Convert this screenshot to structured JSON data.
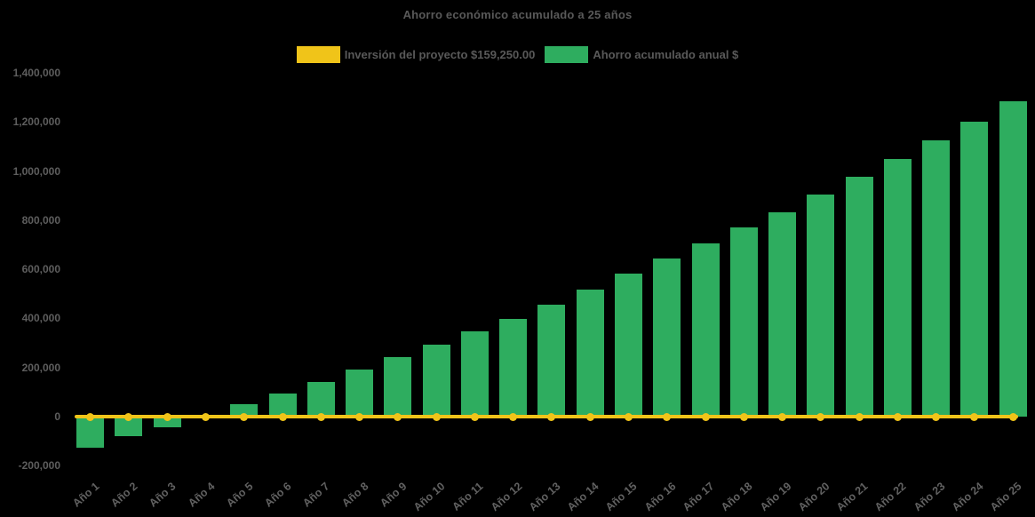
{
  "title": "Ahorro económico acumulado a 25 años",
  "legend": {
    "items": [
      {
        "name": "inversion",
        "label": "Inversión del proyecto $159,250.00",
        "color": "#F0C419"
      },
      {
        "name": "ahorro",
        "label": "Ahorro acumulado anual $",
        "color": "#2EAD5F"
      }
    ]
  },
  "colors": {
    "background": "#000000",
    "bar_green": "#2EAD5F",
    "line_yellow": "#F0C419",
    "title_text": "#595959",
    "axis_text": "#5e5e5e"
  },
  "chart_data": {
    "type": "bar",
    "title": "Ahorro económico acumulado a 25 años",
    "xlabel": "",
    "ylabel": "",
    "ylim": [
      -200000,
      1400000
    ],
    "ytick_step": 200000,
    "ytick_labels": [
      "1,400,000",
      "1,200,000",
      "1,000,000",
      "800,000",
      "600,000",
      "400,000",
      "200,000",
      "0",
      "-200,000"
    ],
    "ytick_values": [
      1400000,
      1200000,
      1000000,
      800000,
      600000,
      400000,
      200000,
      0,
      -200000
    ],
    "grid": false,
    "legend_position": "top",
    "categories": [
      "Año 1",
      "Año 2",
      "Año 3",
      "Año 4",
      "Año 5",
      "Año 6",
      "Año 7",
      "Año 8",
      "Año 9",
      "Año 10",
      "Año 11",
      "Año 12",
      "Año 13",
      "Año 14",
      "Año 15",
      "Año 16",
      "Año 17",
      "Año 18",
      "Año 19",
      "Año 20",
      "Año 21",
      "Año 22",
      "Año 23",
      "Año 24",
      "Año 25"
    ],
    "series": [
      {
        "name": "Ahorro acumulado anual $",
        "type": "bar",
        "color": "#2EAD5F",
        "values": [
          -125000,
          -80000,
          -42000,
          5000,
          52000,
          95000,
          142000,
          190000,
          242000,
          294000,
          346000,
          398000,
          457000,
          518000,
          581000,
          642000,
          706000,
          770000,
          833000,
          905000,
          977000,
          1050000,
          1126000,
          1201000,
          1283000
        ]
      },
      {
        "name": "Inversión del proyecto $159,250.00",
        "type": "line",
        "color": "#F0C419",
        "marker": "circle",
        "values": [
          0,
          0,
          0,
          0,
          0,
          0,
          0,
          0,
          0,
          0,
          0,
          0,
          0,
          0,
          0,
          0,
          0,
          0,
          0,
          0,
          0,
          0,
          0,
          0,
          0
        ]
      }
    ]
  }
}
